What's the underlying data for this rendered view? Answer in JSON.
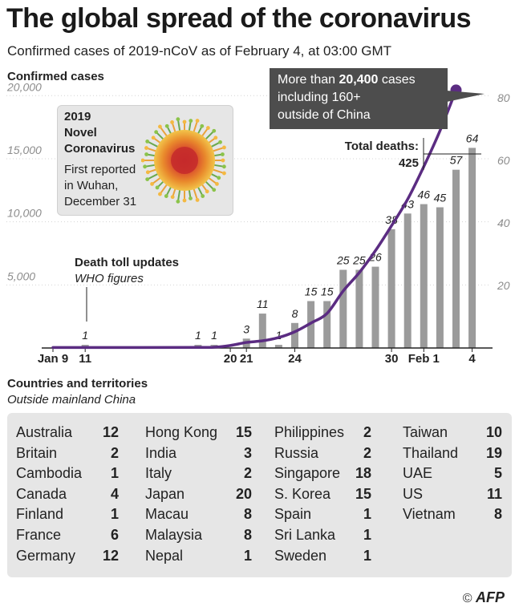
{
  "title": "The global spread of the coronavirus",
  "subtitle": "Confirmed cases of 2019-nCoV as of February 4, at 03:00 GMT",
  "callout": {
    "line1_prefix": "More than ",
    "line1_bold": "20,400",
    "line1_suffix": " cases",
    "line2": "including 160+",
    "line3": "outside of China"
  },
  "virus_box": {
    "name_lines": [
      "2019",
      "Novel",
      "Coronavirus"
    ],
    "first_reported_lines": [
      "First reported",
      "in Wuhan,",
      "December 31"
    ]
  },
  "annotations": {
    "death_toll_title": "Death toll updates",
    "death_toll_sub": "WHO figures",
    "total_deaths_label": "Total deaths:",
    "total_deaths_value": "425"
  },
  "chart_data": {
    "type": "bar+line",
    "left_axis_label": "Confirmed cases",
    "left_axis_ticks": [
      {
        "value": 5000,
        "label": "5,000"
      },
      {
        "value": 10000,
        "label": "10,000"
      },
      {
        "value": 15000,
        "label": "15,000"
      },
      {
        "value": 20000,
        "label": "20,000"
      }
    ],
    "left_ylim": [
      0,
      20400
    ],
    "right_axis_ticks": [
      20,
      40,
      60,
      80
    ],
    "right_ylim": [
      0,
      80
    ],
    "x_tick_labels": [
      {
        "day": 0,
        "label": "Jan 9"
      },
      {
        "day": 2,
        "label": "11"
      },
      {
        "day": 11,
        "label": "20"
      },
      {
        "day": 12,
        "label": "21"
      },
      {
        "day": 15,
        "label": "24"
      },
      {
        "day": 21,
        "label": "30"
      },
      {
        "day": 23,
        "label": "Feb 1"
      },
      {
        "day": 26,
        "label": "4"
      }
    ],
    "deaths_series": {
      "name": "Death toll updates",
      "points": [
        {
          "day": 2,
          "value": 1
        },
        {
          "day": 9,
          "value": 1
        },
        {
          "day": 10,
          "value": 1
        },
        {
          "day": 12,
          "value": 3
        },
        {
          "day": 13,
          "value": 11
        },
        {
          "day": 14,
          "value": 1
        },
        {
          "day": 15,
          "value": 8
        },
        {
          "day": 16,
          "value": 15
        },
        {
          "day": 17,
          "value": 15
        },
        {
          "day": 18,
          "value": 25
        },
        {
          "day": 19,
          "value": 25
        },
        {
          "day": 20,
          "value": 26
        },
        {
          "day": 21,
          "value": 38
        },
        {
          "day": 22,
          "value": 43
        },
        {
          "day": 23,
          "value": 46
        },
        {
          "day": 24,
          "value": 45
        },
        {
          "day": 25,
          "value": 57
        },
        {
          "day": 26,
          "value": 64
        }
      ]
    },
    "cases_series": {
      "name": "Confirmed cases",
      "points": [
        {
          "day": 0,
          "value": 41
        },
        {
          "day": 2,
          "value": 41
        },
        {
          "day": 9,
          "value": 45
        },
        {
          "day": 10,
          "value": 62
        },
        {
          "day": 11,
          "value": 200
        },
        {
          "day": 12,
          "value": 440
        },
        {
          "day": 13,
          "value": 571
        },
        {
          "day": 14,
          "value": 830
        },
        {
          "day": 15,
          "value": 1287
        },
        {
          "day": 16,
          "value": 1975
        },
        {
          "day": 17,
          "value": 2744
        },
        {
          "day": 18,
          "value": 4515
        },
        {
          "day": 19,
          "value": 5974
        },
        {
          "day": 20,
          "value": 7711
        },
        {
          "day": 21,
          "value": 9692
        },
        {
          "day": 22,
          "value": 11791
        },
        {
          "day": 23,
          "value": 14380
        },
        {
          "day": 24,
          "value": 17205
        },
        {
          "day": 25,
          "value": 20438
        }
      ]
    },
    "colors": {
      "bars": "#9b9b9b",
      "line": "#5b2c82",
      "axis": "#222222",
      "ticks": "#8c8c8c"
    }
  },
  "countries": {
    "title": "Countries and territories",
    "subtitle": "Outside mainland China",
    "columns": [
      [
        {
          "name": "Australia",
          "count": "12"
        },
        {
          "name": "Britain",
          "count": "2"
        },
        {
          "name": "Cambodia",
          "count": "1"
        },
        {
          "name": "Canada",
          "count": "4"
        },
        {
          "name": "Finland",
          "count": "1"
        },
        {
          "name": "France",
          "count": "6"
        },
        {
          "name": "Germany",
          "count": "12"
        }
      ],
      [
        {
          "name": "Hong Kong",
          "count": "15"
        },
        {
          "name": "India",
          "count": "3"
        },
        {
          "name": "Italy",
          "count": "2"
        },
        {
          "name": "Japan",
          "count": "20"
        },
        {
          "name": "Macau",
          "count": "8"
        },
        {
          "name": "Malaysia",
          "count": "8"
        },
        {
          "name": "Nepal",
          "count": "1"
        }
      ],
      [
        {
          "name": "Philippines",
          "count": "2"
        },
        {
          "name": "Russia",
          "count": "2"
        },
        {
          "name": "Singapore",
          "count": "18"
        },
        {
          "name": "S. Korea",
          "count": "15"
        },
        {
          "name": "Spain",
          "count": "1"
        },
        {
          "name": "Sri Lanka",
          "count": "1"
        },
        {
          "name": "Sweden",
          "count": "1"
        }
      ],
      [
        {
          "name": "Taiwan",
          "count": "10"
        },
        {
          "name": "Thailand",
          "count": "19"
        },
        {
          "name": "UAE",
          "count": "5"
        },
        {
          "name": "US",
          "count": "11"
        },
        {
          "name": "Vietnam",
          "count": "8"
        }
      ]
    ]
  },
  "credit": {
    "copyright": "©",
    "logo": "AFP"
  }
}
